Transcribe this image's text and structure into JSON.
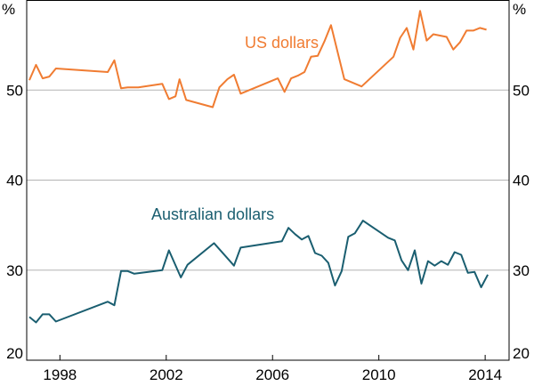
{
  "chart_data": {
    "type": "line",
    "unit_left": "%",
    "unit_right": "%",
    "ylim": [
      20,
      60
    ],
    "y_ticks": [
      20,
      30,
      40,
      50
    ],
    "xlim": [
      1996.75,
      2014.9
    ],
    "x_ticks": [
      1998,
      2002,
      2006,
      2010,
      2014
    ],
    "grid": "horizontal",
    "series": [
      {
        "name": "US dollars",
        "color": "#f07c32",
        "points": [
          [
            1996.85,
            51.1
          ],
          [
            1997.1,
            52.8
          ],
          [
            1997.35,
            51.3
          ],
          [
            1997.6,
            51.5
          ],
          [
            1997.85,
            52.4
          ],
          [
            1999.8,
            52.0
          ],
          [
            2000.05,
            53.3
          ],
          [
            2000.3,
            50.2
          ],
          [
            2000.55,
            50.3
          ],
          [
            2000.95,
            50.3
          ],
          [
            2001.85,
            50.7
          ],
          [
            2002.1,
            49.0
          ],
          [
            2002.35,
            49.3
          ],
          [
            2002.5,
            51.2
          ],
          [
            2002.75,
            48.9
          ],
          [
            2003.75,
            48.1
          ],
          [
            2004.0,
            50.3
          ],
          [
            2004.3,
            51.2
          ],
          [
            2004.55,
            51.7
          ],
          [
            2004.8,
            49.6
          ],
          [
            2006.2,
            51.3
          ],
          [
            2006.45,
            49.8
          ],
          [
            2006.7,
            51.3
          ],
          [
            2006.95,
            51.6
          ],
          [
            2007.2,
            52.0
          ],
          [
            2007.45,
            53.7
          ],
          [
            2007.7,
            53.8
          ],
          [
            2007.95,
            55.4
          ],
          [
            2008.2,
            57.2
          ],
          [
            2008.45,
            54.2
          ],
          [
            2008.7,
            51.2
          ],
          [
            2009.35,
            50.4
          ],
          [
            2010.55,
            53.7
          ],
          [
            2010.8,
            55.8
          ],
          [
            2011.05,
            56.9
          ],
          [
            2011.3,
            54.5
          ],
          [
            2011.55,
            58.8
          ],
          [
            2011.8,
            55.5
          ],
          [
            2012.05,
            56.2
          ],
          [
            2012.55,
            55.9
          ],
          [
            2012.8,
            54.5
          ],
          [
            2013.05,
            55.3
          ],
          [
            2013.3,
            56.6
          ],
          [
            2013.55,
            56.6
          ],
          [
            2013.8,
            56.9
          ],
          [
            2014.05,
            56.7
          ]
        ]
      },
      {
        "name": "Australian dollars",
        "color": "#1a5e70",
        "points": [
          [
            1996.85,
            24.8
          ],
          [
            1997.1,
            24.2
          ],
          [
            1997.35,
            25.1
          ],
          [
            1997.6,
            25.1
          ],
          [
            1997.85,
            24.3
          ],
          [
            1999.8,
            26.5
          ],
          [
            2000.05,
            26.1
          ],
          [
            2000.3,
            29.9
          ],
          [
            2000.55,
            29.9
          ],
          [
            2000.8,
            29.6
          ],
          [
            2001.85,
            30.0
          ],
          [
            2002.1,
            32.2
          ],
          [
            2002.55,
            29.2
          ],
          [
            2002.8,
            30.6
          ],
          [
            2003.8,
            33.0
          ],
          [
            2004.55,
            30.5
          ],
          [
            2004.8,
            32.5
          ],
          [
            2006.35,
            33.2
          ],
          [
            2006.6,
            34.7
          ],
          [
            2006.85,
            34.0
          ],
          [
            2007.1,
            33.4
          ],
          [
            2007.35,
            33.8
          ],
          [
            2007.6,
            31.9
          ],
          [
            2007.85,
            31.6
          ],
          [
            2008.1,
            30.8
          ],
          [
            2008.35,
            28.3
          ],
          [
            2008.6,
            29.9
          ],
          [
            2008.85,
            33.7
          ],
          [
            2009.1,
            34.1
          ],
          [
            2009.4,
            35.5
          ],
          [
            2010.35,
            33.6
          ],
          [
            2010.6,
            33.3
          ],
          [
            2010.85,
            31.1
          ],
          [
            2011.1,
            30.0
          ],
          [
            2011.35,
            32.2
          ],
          [
            2011.6,
            28.5
          ],
          [
            2011.85,
            31.0
          ],
          [
            2012.1,
            30.5
          ],
          [
            2012.35,
            31.0
          ],
          [
            2012.6,
            30.6
          ],
          [
            2012.85,
            32.0
          ],
          [
            2013.1,
            31.7
          ],
          [
            2013.35,
            29.7
          ],
          [
            2013.6,
            29.8
          ],
          [
            2013.85,
            28.1
          ],
          [
            2014.1,
            29.5
          ]
        ]
      }
    ]
  }
}
